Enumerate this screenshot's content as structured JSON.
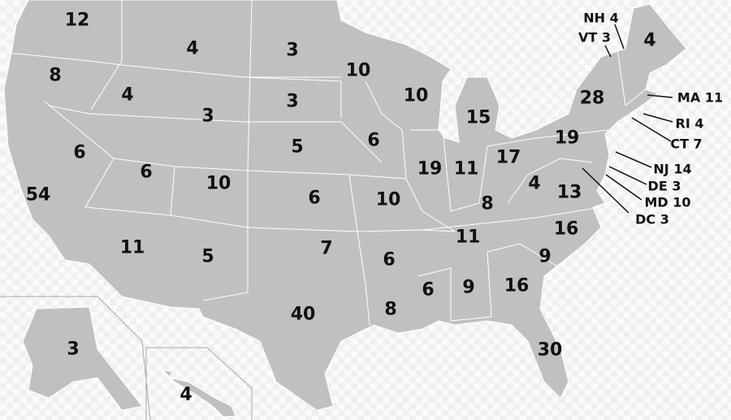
{
  "map": {
    "land_color": "#c0c0c0",
    "border_color": "#ffffff",
    "states": [
      {
        "state": "WA",
        "votes": "12"
      },
      {
        "state": "OR",
        "votes": "8"
      },
      {
        "state": "ID",
        "votes": "4"
      },
      {
        "state": "MT",
        "votes": "4"
      },
      {
        "state": "ND",
        "votes": "3"
      },
      {
        "state": "MN",
        "votes": "10"
      },
      {
        "state": "WI",
        "votes": "10"
      },
      {
        "state": "MI",
        "votes": "15"
      },
      {
        "state": "SD",
        "votes": "3"
      },
      {
        "state": "WY",
        "votes": "3"
      },
      {
        "state": "NV",
        "votes": "6"
      },
      {
        "state": "UT",
        "votes": "6"
      },
      {
        "state": "CO",
        "votes": "10"
      },
      {
        "state": "NE",
        "votes": "5"
      },
      {
        "state": "IA",
        "votes": "6"
      },
      {
        "state": "IL",
        "votes": "19"
      },
      {
        "state": "IN",
        "votes": "11"
      },
      {
        "state": "OH",
        "votes": "17"
      },
      {
        "state": "PA",
        "votes": "19"
      },
      {
        "state": "NY",
        "votes": "28"
      },
      {
        "state": "ME",
        "votes": "4"
      },
      {
        "state": "CA",
        "votes": "54"
      },
      {
        "state": "AZ",
        "votes": "11"
      },
      {
        "state": "NM",
        "votes": "5"
      },
      {
        "state": "KS",
        "votes": "6"
      },
      {
        "state": "MO",
        "votes": "10"
      },
      {
        "state": "KY",
        "votes": "8"
      },
      {
        "state": "WV",
        "votes": "4"
      },
      {
        "state": "VA",
        "votes": "13"
      },
      {
        "state": "OK",
        "votes": "7"
      },
      {
        "state": "AR",
        "votes": "6"
      },
      {
        "state": "TN",
        "votes": "11"
      },
      {
        "state": "NC",
        "votes": "16"
      },
      {
        "state": "SC",
        "votes": "9"
      },
      {
        "state": "TX",
        "votes": "40"
      },
      {
        "state": "LA",
        "votes": "8"
      },
      {
        "state": "MS",
        "votes": "6"
      },
      {
        "state": "AL",
        "votes": "9"
      },
      {
        "state": "GA",
        "votes": "16"
      },
      {
        "state": "FL",
        "votes": "30"
      },
      {
        "state": "AK",
        "votes": "3"
      },
      {
        "state": "HI",
        "votes": "4"
      }
    ],
    "callouts": [
      {
        "state": "NH",
        "label": "NH 4"
      },
      {
        "state": "VT",
        "label": "VT 3"
      },
      {
        "state": "MA",
        "label": "MA 11"
      },
      {
        "state": "RI",
        "label": "RI 4"
      },
      {
        "state": "CT",
        "label": "CT 7"
      },
      {
        "state": "NJ",
        "label": "NJ 14"
      },
      {
        "state": "DE",
        "label": "DE 3"
      },
      {
        "state": "MD",
        "label": "MD 10"
      },
      {
        "state": "DC",
        "label": "DC 3"
      }
    ]
  }
}
